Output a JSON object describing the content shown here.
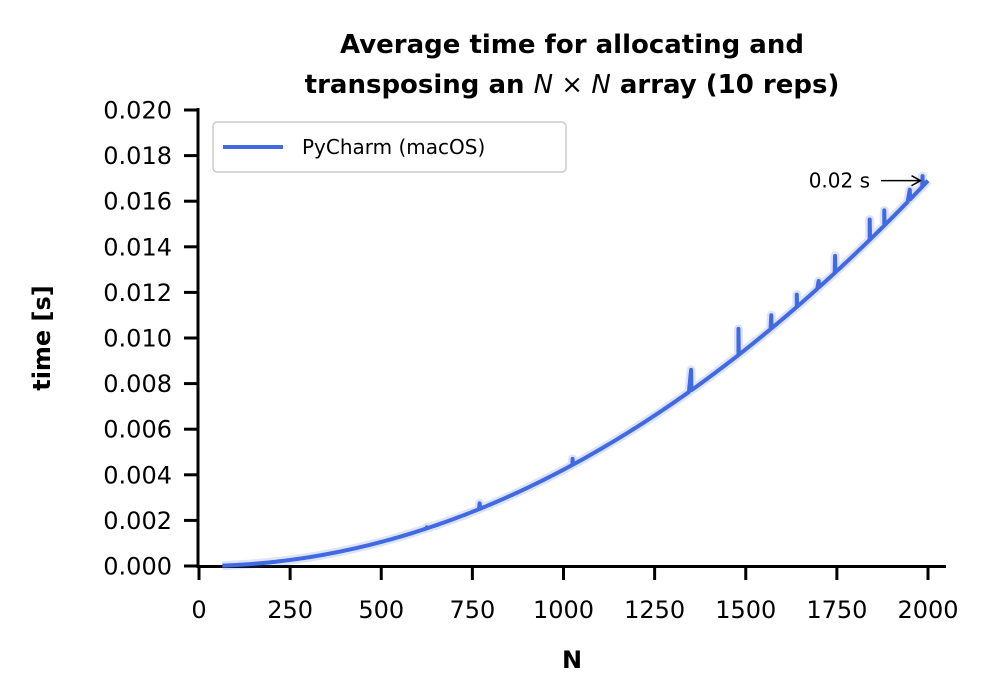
{
  "chart_data": {
    "type": "line",
    "title_line1": "Average time for allocating and",
    "title_line2_prefix": "transposing an ",
    "title_line2_math": "N × N",
    "title_line2_suffix": " array (10 reps)",
    "xlabel": "N",
    "ylabel": "time [s]",
    "xlim": [
      0,
      2000
    ],
    "ylim": [
      0,
      0.02
    ],
    "xticks": [
      0,
      250,
      500,
      750,
      1000,
      1250,
      1500,
      1750,
      2000
    ],
    "yticks": [
      0.0,
      0.002,
      0.004,
      0.006,
      0.008,
      0.01,
      0.012,
      0.014,
      0.016,
      0.018,
      0.02
    ],
    "ytick_labels": [
      "0.000",
      "0.002",
      "0.004",
      "0.006",
      "0.008",
      "0.010",
      "0.012",
      "0.014",
      "0.016",
      "0.018",
      "0.020"
    ],
    "grid": false,
    "legend_position": "top-left",
    "series": [
      {
        "name": "PyCharm (macOS)",
        "color": "#4169E1",
        "model": "quadratic",
        "x_start": 64,
        "x_end": 2000,
        "x_step": 8,
        "y_at_x_end": 0.0169,
        "spikes": [
          {
            "x": 625,
            "y": 0.0017
          },
          {
            "x": 770,
            "y": 0.00275
          },
          {
            "x": 1025,
            "y": 0.0047
          },
          {
            "x": 1350,
            "y": 0.0086
          },
          {
            "x": 1480,
            "y": 0.0104
          },
          {
            "x": 1570,
            "y": 0.011
          },
          {
            "x": 1640,
            "y": 0.0119
          },
          {
            "x": 1700,
            "y": 0.0125
          },
          {
            "x": 1745,
            "y": 0.0136
          },
          {
            "x": 1840,
            "y": 0.0152
          },
          {
            "x": 1880,
            "y": 0.0156
          },
          {
            "x": 1950,
            "y": 0.0165
          },
          {
            "x": 1985,
            "y": 0.0171
          }
        ]
      }
    ],
    "annotation": {
      "text": "0.02 s",
      "arrow_to": {
        "x": 1985,
        "y": 0.0169
      }
    }
  }
}
